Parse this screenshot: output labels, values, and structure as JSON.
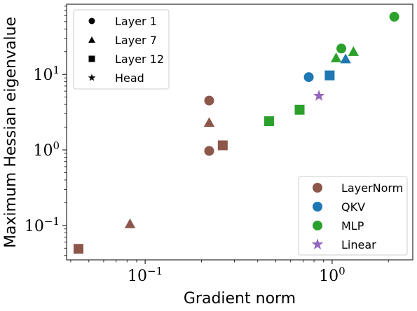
{
  "chart_data": {
    "type": "scatter",
    "xlabel": "Gradient norm",
    "ylabel": "Maximum Hessian eigenvalue",
    "xscale": "log",
    "yscale": "log",
    "xlim": [
      0.038,
      2.7
    ],
    "ylim": [
      0.035,
      85
    ],
    "x_ticks": [
      {
        "value": 0.1,
        "base": "10",
        "exp": "−1"
      },
      {
        "value": 1,
        "base": "10",
        "exp": "0"
      }
    ],
    "y_ticks": [
      {
        "value": 0.1,
        "base": "10",
        "exp": "−1"
      },
      {
        "value": 1,
        "base": "10",
        "exp": "0"
      },
      {
        "value": 10,
        "base": "10",
        "exp": "1"
      }
    ],
    "grid": false,
    "legend_shapes": {
      "placement": "top-left",
      "entries": [
        {
          "label": "Layer 1",
          "marker": "circle"
        },
        {
          "label": "Layer 7",
          "marker": "triangle"
        },
        {
          "label": "Layer 12",
          "marker": "square"
        },
        {
          "label": "Head",
          "marker": "star"
        }
      ]
    },
    "legend_colors": {
      "placement": "bottom-right",
      "entries": [
        {
          "label": "LayerNorm",
          "color": "#8c564b",
          "marker": "circle"
        },
        {
          "label": "QKV",
          "color": "#1f77b4",
          "marker": "circle"
        },
        {
          "label": "MLP",
          "color": "#2ca02c",
          "marker": "circle"
        },
        {
          "label": "Linear",
          "color": "#9467bd",
          "marker": "star"
        }
      ]
    },
    "series": [
      {
        "name": "LayerNorm",
        "color": "#8c564b",
        "points": [
          {
            "x": 0.22,
            "y": 4.5,
            "layer": "Layer 1"
          },
          {
            "x": 0.22,
            "y": 0.97,
            "layer": "Layer 1"
          },
          {
            "x": 0.22,
            "y": 2.3,
            "layer": "Layer 7"
          },
          {
            "x": 0.083,
            "y": 0.105,
            "layer": "Layer 7"
          },
          {
            "x": 0.26,
            "y": 1.15,
            "layer": "Layer 12"
          },
          {
            "x": 0.044,
            "y": 0.049,
            "layer": "Layer 12"
          }
        ]
      },
      {
        "name": "QKV",
        "color": "#1f77b4",
        "points": [
          {
            "x": 0.75,
            "y": 9.2,
            "layer": "Layer 1"
          },
          {
            "x": 1.18,
            "y": 16,
            "layer": "Layer 7"
          },
          {
            "x": 0.97,
            "y": 9.7,
            "layer": "Layer 12"
          }
        ]
      },
      {
        "name": "MLP",
        "color": "#2ca02c",
        "points": [
          {
            "x": 1.12,
            "y": 22,
            "layer": "Layer 1"
          },
          {
            "x": 2.15,
            "y": 58,
            "layer": "Layer 1"
          },
          {
            "x": 1.05,
            "y": 16.5,
            "layer": "Layer 7"
          },
          {
            "x": 1.3,
            "y": 20,
            "layer": "Layer 7"
          },
          {
            "x": 0.46,
            "y": 2.4,
            "layer": "Layer 12"
          },
          {
            "x": 0.67,
            "y": 3.4,
            "layer": "Layer 12"
          }
        ]
      },
      {
        "name": "Linear",
        "color": "#9467bd",
        "points": [
          {
            "x": 0.85,
            "y": 5.2,
            "layer": "Head"
          }
        ]
      }
    ]
  }
}
